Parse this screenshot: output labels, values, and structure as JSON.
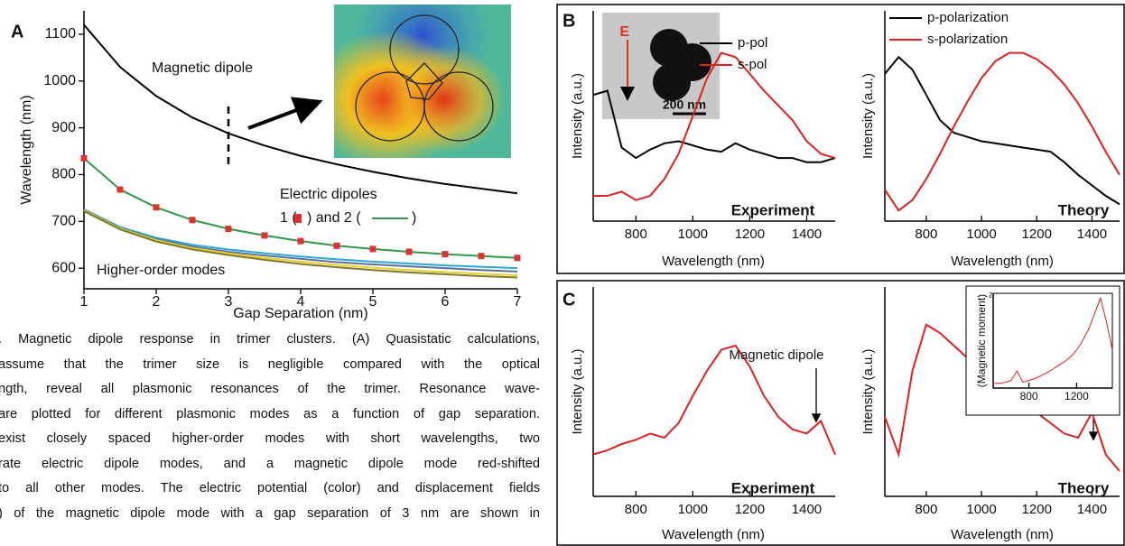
{
  "chart_data": [
    {
      "type": "line",
      "panel": "A",
      "xlabel": "Gap Separation (nm)",
      "ylabel": "Wavelength (nm)",
      "x": [
        1,
        1.5,
        2,
        2.5,
        3,
        3.5,
        4,
        4.5,
        5,
        5.5,
        6,
        6.5,
        7
      ],
      "xlim": [
        1,
        7
      ],
      "xticks": [
        1,
        2,
        3,
        4,
        5,
        6,
        7
      ],
      "ylim": [
        556,
        1150
      ],
      "yticks": [
        600,
        700,
        800,
        900,
        1000,
        1100
      ],
      "series": [
        {
          "color": "#000000",
          "values": [
            1120,
            1030,
            968,
            922,
            888,
            862,
            840,
            822,
            806,
            792,
            780,
            770,
            760
          ]
        },
        {
          "color": "#2ca7d6",
          "values": [
            726,
            688,
            665,
            650,
            640,
            632,
            625,
            619,
            614,
            610,
            606,
            603,
            600
          ]
        },
        {
          "color": "#5a6ea0",
          "values": [
            725,
            686,
            662,
            646,
            635,
            627,
            620,
            613,
            608,
            604,
            600,
            596,
            593
          ]
        },
        {
          "color": "#e6d22a",
          "values": [
            724,
            685,
            660,
            643,
            632,
            622,
            614,
            607,
            601,
            596,
            592,
            588,
            585
          ]
        },
        {
          "color": "#7d7a2e",
          "values": [
            722,
            683,
            657,
            640,
            628,
            618,
            609,
            602,
            596,
            591,
            587,
            583,
            580
          ]
        },
        {
          "color": "#2e9a4a",
          "marker": "square",
          "marker_color": "#e03030",
          "values": [
            835,
            768,
            730,
            703,
            684,
            670,
            658,
            648,
            641,
            635,
            630,
            626,
            622
          ]
        }
      ],
      "annotations": [
        "Magnetic dipole",
        "Electric dipoles",
        "1 (",
        ") and 2 (",
        ")",
        "Higher-order modes"
      ]
    },
    {
      "type": "line",
      "panel": "B",
      "title": "Experiment",
      "xlabel": "Wavelength (nm)",
      "ylabel": "Intensity (a.u.)",
      "x": [
        650,
        700,
        750,
        800,
        850,
        900,
        950,
        1000,
        1050,
        1100,
        1150,
        1200,
        1250,
        1300,
        1350,
        1400,
        1450,
        1500
      ],
      "xlim": [
        650,
        1500
      ],
      "xticks": [
        800,
        1000,
        1200,
        1400
      ],
      "ylim": [
        0,
        1
      ],
      "series": [
        {
          "name": "p-pol",
          "color": "#000000",
          "values": [
            0.6,
            0.62,
            0.35,
            0.3,
            0.34,
            0.37,
            0.38,
            0.36,
            0.34,
            0.33,
            0.37,
            0.34,
            0.32,
            0.3,
            0.3,
            0.28,
            0.28,
            0.3
          ]
        },
        {
          "name": "s-pol",
          "color": "#e02020",
          "values": [
            0.12,
            0.12,
            0.14,
            0.1,
            0.12,
            0.2,
            0.32,
            0.5,
            0.68,
            0.8,
            0.78,
            0.7,
            0.62,
            0.55,
            0.48,
            0.38,
            0.32,
            0.3
          ]
        }
      ]
    },
    {
      "type": "line",
      "title": "Theory",
      "xlabel": "Wavelength (nm)",
      "ylabel": "Intensity (a.u.)",
      "x": [
        650,
        700,
        750,
        800,
        850,
        900,
        950,
        1000,
        1050,
        1100,
        1150,
        1200,
        1250,
        1300,
        1350,
        1400,
        1450,
        1500
      ],
      "xlim": [
        650,
        1500
      ],
      "xticks": [
        800,
        1000,
        1200,
        1400
      ],
      "ylim": [
        0,
        1
      ],
      "series": [
        {
          "name": "p-polarization",
          "color": "#000000",
          "values": [
            0.7,
            0.78,
            0.72,
            0.6,
            0.48,
            0.42,
            0.4,
            0.38,
            0.37,
            0.36,
            0.35,
            0.34,
            0.33,
            0.28,
            0.22,
            0.17,
            0.12,
            0.08
          ]
        },
        {
          "name": "s-polarization",
          "color": "#e02020",
          "values": [
            0.15,
            0.05,
            0.1,
            0.2,
            0.32,
            0.45,
            0.57,
            0.68,
            0.76,
            0.8,
            0.8,
            0.77,
            0.72,
            0.65,
            0.56,
            0.45,
            0.33,
            0.22
          ]
        }
      ]
    },
    {
      "type": "line",
      "panel": "C",
      "title": "Experiment",
      "xlabel": "Wavelength (nm)",
      "ylabel": "Intensity (a.u.)",
      "x": [
        650,
        700,
        750,
        800,
        850,
        900,
        950,
        1000,
        1050,
        1100,
        1150,
        1200,
        1250,
        1300,
        1350,
        1400,
        1450,
        1500
      ],
      "xlim": [
        650,
        1500
      ],
      "xticks": [
        800,
        1000,
        1200,
        1400
      ],
      "ylim": [
        0,
        1
      ],
      "series": [
        {
          "color": "#e02020",
          "values": [
            0.2,
            0.22,
            0.25,
            0.27,
            0.3,
            0.28,
            0.35,
            0.48,
            0.6,
            0.7,
            0.72,
            0.62,
            0.48,
            0.38,
            0.32,
            0.3,
            0.36,
            0.2
          ]
        }
      ],
      "annotations": [
        "Magnetic dipole"
      ]
    },
    {
      "type": "line",
      "title": "Theory",
      "xlabel": "Wavelength (nm)",
      "ylabel": "Intensity (a.u.)",
      "x": [
        650,
        700,
        750,
        800,
        850,
        900,
        950,
        1000,
        1050,
        1100,
        1150,
        1200,
        1250,
        1300,
        1350,
        1400,
        1450,
        1500
      ],
      "xlim": [
        650,
        1500
      ],
      "xticks": [
        800,
        1000,
        1200,
        1400
      ],
      "ylim": [
        0,
        1
      ],
      "series": [
        {
          "color": "#e02020",
          "values": [
            0.38,
            0.2,
            0.6,
            0.82,
            0.78,
            0.72,
            0.66,
            0.6,
            0.55,
            0.5,
            0.45,
            0.4,
            0.35,
            0.3,
            0.28,
            0.4,
            0.2,
            0.12
          ]
        }
      ],
      "annotations": [
        "Magnetic dipole"
      ]
    },
    {
      "type": "line",
      "ylabel": "(Magnetic moment)",
      "ylabel_subscript": "z",
      "x": [
        500,
        550,
        600,
        650,
        700,
        750,
        800,
        850,
        900,
        950,
        1000,
        1050,
        1100,
        1150,
        1200,
        1250,
        1300,
        1350,
        1400,
        1450,
        1500
      ],
      "xlim": [
        500,
        1500
      ],
      "xticks": [
        800,
        1200
      ],
      "ylim": [
        0,
        1
      ],
      "series": [
        {
          "color": "#e02020",
          "values": [
            0.05,
            0.05,
            0.06,
            0.08,
            0.18,
            0.06,
            0.08,
            0.1,
            0.13,
            0.16,
            0.2,
            0.24,
            0.28,
            0.33,
            0.4,
            0.5,
            0.62,
            0.78,
            0.95,
            0.7,
            0.4
          ]
        }
      ]
    }
  ],
  "tem_inset": {
    "field": "E",
    "scale_bar": "200 nm"
  },
  "caption": {
    "lines": [
      ". Magnetic dipole response in trimer clusters. (A) Quasistatic calculations,",
      "assume that the trimer size is negligible compared with the optical",
      "ngth, reveal all plasmonic resonances of the trimer. Resonance wave-",
      "are plotted for different plasmonic modes as a function of gap separation.",
      "exist closely spaced higher-order modes with short wavelengths, two",
      "rate electric dipole modes, and a magnetic dipole mode red-shifted",
      "to all other modes. The electric potential (color) and displacement fields",
      ") of the magnetic dipole mode with a gap separation of 3 nm are shown in"
    ]
  }
}
